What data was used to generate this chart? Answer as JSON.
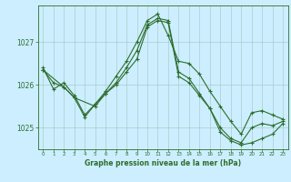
{
  "background_color": "#cceeff",
  "grid_color": "#aacccc",
  "line_color": "#2d6e2d",
  "xlabel": "Graphe pression niveau de la mer (hPa)",
  "ylim": [
    1024.5,
    1027.85
  ],
  "xlim": [
    -0.5,
    23.5
  ],
  "yticks": [
    1025,
    1026,
    1027
  ],
  "xticks": [
    0,
    1,
    2,
    3,
    4,
    5,
    6,
    7,
    8,
    9,
    10,
    11,
    12,
    13,
    14,
    15,
    16,
    17,
    18,
    19,
    20,
    21,
    22,
    23
  ],
  "series1_x": [
    0,
    1,
    2,
    3,
    4,
    5,
    6,
    7,
    8,
    9,
    10,
    11,
    12,
    13,
    14,
    15,
    16,
    17,
    18,
    19,
    20,
    21,
    22,
    23
  ],
  "series1_y": [
    1026.4,
    1025.9,
    1026.05,
    1025.75,
    1025.3,
    1025.55,
    1025.85,
    1026.2,
    1026.55,
    1027.0,
    1027.5,
    1027.65,
    1027.15,
    1026.55,
    1026.5,
    1026.25,
    1025.85,
    1025.5,
    1025.15,
    1024.85,
    1025.35,
    1025.4,
    1025.3,
    1025.2
  ],
  "series2_x": [
    0,
    1,
    2,
    3,
    4,
    5,
    6,
    7,
    8,
    9,
    10,
    11,
    12,
    13,
    14,
    15,
    16,
    17,
    18,
    19,
    20,
    21,
    22,
    23
  ],
  "series2_y": [
    1026.35,
    1026.05,
    1025.95,
    1025.7,
    1025.25,
    1025.55,
    1025.8,
    1026.05,
    1026.4,
    1026.8,
    1027.4,
    1027.55,
    1027.5,
    1026.3,
    1026.15,
    1025.8,
    1025.45,
    1025.0,
    1024.75,
    1024.65,
    1025.0,
    1025.1,
    1025.05,
    1025.15
  ],
  "series3_x": [
    0,
    2,
    3,
    5,
    6,
    7,
    8,
    9,
    10,
    11,
    12,
    13,
    14,
    15,
    16,
    17,
    18,
    19,
    20,
    21,
    22,
    23
  ],
  "series3_y": [
    1026.35,
    1025.95,
    1025.7,
    1025.5,
    1025.8,
    1026.0,
    1026.3,
    1026.6,
    1027.35,
    1027.5,
    1027.45,
    1026.2,
    1026.05,
    1025.75,
    1025.45,
    1024.9,
    1024.7,
    1024.6,
    1024.65,
    1024.75,
    1024.85,
    1025.1
  ]
}
